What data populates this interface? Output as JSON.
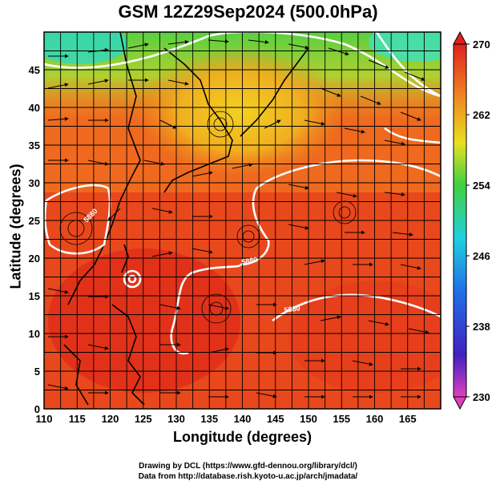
{
  "title": "GSM 12Z29Sep2024 (500.0hPa)",
  "xlabel": "Longitude (degrees)",
  "ylabel": "Latitude  (degrees)",
  "credit_drawing": "Drawing by DCL (https://www.gfd-dennou.org/library/dcl/)",
  "credit_data": "Data from http://database.rish.kyoto-u.ac.jp/arch/jmadata/",
  "axes": {
    "x_ticks": [
      "110",
      "115",
      "120",
      "125",
      "130",
      "135",
      "140",
      "145",
      "150",
      "155",
      "160",
      "165"
    ],
    "y_ticks": [
      "0",
      "5",
      "10",
      "15",
      "20",
      "25",
      "30",
      "35",
      "40",
      "45"
    ],
    "xlim": [
      110,
      170
    ],
    "ylim": [
      0,
      50
    ]
  },
  "colorbar": {
    "labels": [
      "270",
      "262",
      "254",
      "246",
      "238",
      "230"
    ],
    "range": [
      230,
      270
    ]
  },
  "contour_labels": [
    "5880",
    "5880",
    "5880"
  ],
  "colors": {
    "warm": "#e0301c",
    "orange": "#f06a1a",
    "yellow": "#f0c020",
    "green": "#6cd03c",
    "cyan": "#30e0d0"
  }
}
